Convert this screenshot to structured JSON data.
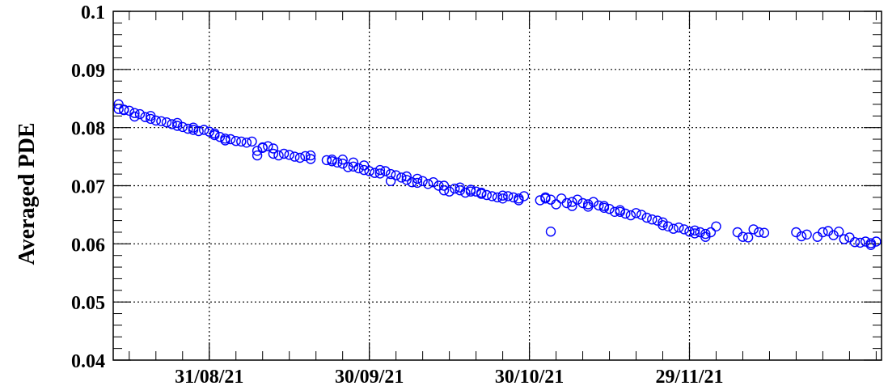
{
  "chart_data": {
    "type": "scatter",
    "title": "",
    "xlabel": "",
    "ylabel": "Averaged PDE",
    "x_axis_type": "date",
    "xlim": [
      "2021-08-13",
      "2021-12-28"
    ],
    "ylim": [
      0.04,
      0.1
    ],
    "y_ticks": [
      0.04,
      0.05,
      0.06,
      0.07,
      0.08,
      0.09,
      0.1
    ],
    "y_tick_labels": [
      "0.04",
      "0.05",
      "0.06",
      "0.07",
      "0.08",
      "0.09",
      "0.1"
    ],
    "x_ticks": [
      "2021-08-31",
      "2021-09-30",
      "2021-10-30",
      "2021-11-29"
    ],
    "x_tick_labels": [
      "31/08/21",
      "30/09/21",
      "30/10/21",
      "29/11/21"
    ],
    "grid": true,
    "legend": "none",
    "marker": "open-circle",
    "marker_color": "#0000ff",
    "series": [
      {
        "points": [
          [
            "2021-08-14",
            0.084
          ],
          [
            "2021-08-14",
            0.0832
          ],
          [
            "2021-08-15",
            0.083
          ],
          [
            "2021-08-15",
            0.0831
          ],
          [
            "2021-08-16",
            0.0829
          ],
          [
            "2021-08-17",
            0.0825
          ],
          [
            "2021-08-17",
            0.0819
          ],
          [
            "2021-08-18",
            0.0823
          ],
          [
            "2021-08-19",
            0.0818
          ],
          [
            "2021-08-20",
            0.082
          ],
          [
            "2021-08-20",
            0.0815
          ],
          [
            "2021-08-21",
            0.0812
          ],
          [
            "2021-08-22",
            0.0811
          ],
          [
            "2021-08-23",
            0.0809
          ],
          [
            "2021-08-24",
            0.0806
          ],
          [
            "2021-08-25",
            0.0808
          ],
          [
            "2021-08-25",
            0.0803
          ],
          [
            "2021-08-26",
            0.0801
          ],
          [
            "2021-08-27",
            0.0798
          ],
          [
            "2021-08-28",
            0.08
          ],
          [
            "2021-08-28",
            0.0796
          ],
          [
            "2021-08-29",
            0.0794
          ],
          [
            "2021-08-30",
            0.0796
          ],
          [
            "2021-08-31",
            0.0793
          ],
          [
            "2021-09-01",
            0.079
          ],
          [
            "2021-09-01",
            0.0787
          ],
          [
            "2021-09-02",
            0.0784
          ],
          [
            "2021-09-03",
            0.0781
          ],
          [
            "2021-09-03",
            0.0778
          ],
          [
            "2021-09-04",
            0.078
          ],
          [
            "2021-09-05",
            0.0777
          ],
          [
            "2021-09-06",
            0.0776
          ],
          [
            "2021-09-07",
            0.0774
          ],
          [
            "2021-09-08",
            0.0776
          ],
          [
            "2021-09-09",
            0.0752
          ],
          [
            "2021-09-09",
            0.076
          ],
          [
            "2021-09-10",
            0.0766
          ],
          [
            "2021-09-10",
            0.0765
          ],
          [
            "2021-09-11",
            0.0768
          ],
          [
            "2021-09-12",
            0.0764
          ],
          [
            "2021-09-12",
            0.0755
          ],
          [
            "2021-09-13",
            0.0752
          ],
          [
            "2021-09-14",
            0.0755
          ],
          [
            "2021-09-15",
            0.0753
          ],
          [
            "2021-09-16",
            0.075
          ],
          [
            "2021-09-17",
            0.0748
          ],
          [
            "2021-09-18",
            0.0751
          ],
          [
            "2021-09-19",
            0.0746
          ],
          [
            "2021-09-19",
            0.0752
          ],
          [
            "2021-09-22",
            0.0744
          ],
          [
            "2021-09-23",
            0.0742
          ],
          [
            "2021-09-23",
            0.0745
          ],
          [
            "2021-09-24",
            0.074
          ],
          [
            "2021-09-25",
            0.0745
          ],
          [
            "2021-09-25",
            0.0738
          ],
          [
            "2021-09-26",
            0.0732
          ],
          [
            "2021-09-27",
            0.074
          ],
          [
            "2021-09-27",
            0.0733
          ],
          [
            "2021-09-28",
            0.073
          ],
          [
            "2021-09-29",
            0.0735
          ],
          [
            "2021-09-29",
            0.0727
          ],
          [
            "2021-09-30",
            0.0725
          ],
          [
            "2021-10-01",
            0.0722
          ],
          [
            "2021-10-02",
            0.0727
          ],
          [
            "2021-10-02",
            0.0721
          ],
          [
            "2021-10-03",
            0.0725
          ],
          [
            "2021-10-04",
            0.0708
          ],
          [
            "2021-10-04",
            0.072
          ],
          [
            "2021-10-05",
            0.0718
          ],
          [
            "2021-10-06",
            0.0714
          ],
          [
            "2021-10-07",
            0.0716
          ],
          [
            "2021-10-07",
            0.071
          ],
          [
            "2021-10-08",
            0.0706
          ],
          [
            "2021-10-09",
            0.0712
          ],
          [
            "2021-10-09",
            0.0705
          ],
          [
            "2021-10-10",
            0.0708
          ],
          [
            "2021-10-11",
            0.0703
          ],
          [
            "2021-10-12",
            0.0706
          ],
          [
            "2021-10-13",
            0.07
          ],
          [
            "2021-10-14",
            0.07
          ],
          [
            "2021-10-14",
            0.0692
          ],
          [
            "2021-10-15",
            0.069
          ],
          [
            "2021-10-16",
            0.0695
          ],
          [
            "2021-10-17",
            0.0692
          ],
          [
            "2021-10-17",
            0.0697
          ],
          [
            "2021-10-18",
            0.0688
          ],
          [
            "2021-10-19",
            0.0693
          ],
          [
            "2021-10-19",
            0.069
          ],
          [
            "2021-10-20",
            0.069
          ],
          [
            "2021-10-21",
            0.0686
          ],
          [
            "2021-10-21",
            0.0688
          ],
          [
            "2021-10-22",
            0.0684
          ],
          [
            "2021-10-23",
            0.0682
          ],
          [
            "2021-10-24",
            0.068
          ],
          [
            "2021-10-25",
            0.0683
          ],
          [
            "2021-10-25",
            0.0678
          ],
          [
            "2021-10-26",
            0.0682
          ],
          [
            "2021-10-27",
            0.068
          ],
          [
            "2021-10-28",
            0.0675
          ],
          [
            "2021-10-28",
            0.0678
          ],
          [
            "2021-10-29",
            0.0682
          ],
          [
            "2021-11-01",
            0.0675
          ],
          [
            "2021-11-02",
            0.068
          ],
          [
            "2021-11-02",
            0.0678
          ],
          [
            "2021-11-03",
            0.0676
          ],
          [
            "2021-11-03",
            0.0621
          ],
          [
            "2021-11-04",
            0.0668
          ],
          [
            "2021-11-05",
            0.0678
          ],
          [
            "2021-11-06",
            0.067
          ],
          [
            "2021-11-07",
            0.0665
          ],
          [
            "2021-11-07",
            0.0672
          ],
          [
            "2021-11-08",
            0.0676
          ],
          [
            "2021-11-09",
            0.067
          ],
          [
            "2021-11-10",
            0.0668
          ],
          [
            "2021-11-10",
            0.0664
          ],
          [
            "2021-11-11",
            0.0672
          ],
          [
            "2021-11-12",
            0.0666
          ],
          [
            "2021-11-13",
            0.0662
          ],
          [
            "2021-11-13",
            0.0665
          ],
          [
            "2021-11-14",
            0.066
          ],
          [
            "2021-11-15",
            0.0655
          ],
          [
            "2021-11-16",
            0.0658
          ],
          [
            "2021-11-16",
            0.0655
          ],
          [
            "2021-11-17",
            0.0652
          ],
          [
            "2021-11-18",
            0.0649
          ],
          [
            "2021-11-19",
            0.0653
          ],
          [
            "2021-11-20",
            0.065
          ],
          [
            "2021-11-21",
            0.0645
          ],
          [
            "2021-11-22",
            0.0642
          ],
          [
            "2021-11-23",
            0.064
          ],
          [
            "2021-11-24",
            0.0632
          ],
          [
            "2021-11-24",
            0.0637
          ],
          [
            "2021-11-25",
            0.063
          ],
          [
            "2021-11-26",
            0.0626
          ],
          [
            "2021-11-27",
            0.0628
          ],
          [
            "2021-11-28",
            0.0625
          ],
          [
            "2021-11-29",
            0.0621
          ],
          [
            "2021-11-30",
            0.0618
          ],
          [
            "2021-11-30",
            0.0623
          ],
          [
            "2021-12-01",
            0.062
          ],
          [
            "2021-12-02",
            0.0612
          ],
          [
            "2021-12-02",
            0.0617
          ],
          [
            "2021-12-03",
            0.062
          ],
          [
            "2021-12-04",
            0.063
          ],
          [
            "2021-12-08",
            0.062
          ],
          [
            "2021-12-09",
            0.0612
          ],
          [
            "2021-12-10",
            0.0611
          ],
          [
            "2021-12-11",
            0.0625
          ],
          [
            "2021-12-12",
            0.062
          ],
          [
            "2021-12-13",
            0.0619
          ],
          [
            "2021-12-19",
            0.062
          ],
          [
            "2021-12-20",
            0.0613
          ],
          [
            "2021-12-21",
            0.0616
          ],
          [
            "2021-12-23",
            0.0612
          ],
          [
            "2021-12-24",
            0.062
          ],
          [
            "2021-12-25",
            0.0622
          ],
          [
            "2021-12-26",
            0.0615
          ],
          [
            "2021-12-27",
            0.0621
          ],
          [
            "2021-12-28",
            0.0608
          ],
          [
            "2021-12-29",
            0.0611
          ],
          [
            "2021-12-30",
            0.0603
          ],
          [
            "2021-12-31",
            0.0602
          ],
          [
            "2022-01-01",
            0.0604
          ],
          [
            "2022-01-02",
            0.0598
          ],
          [
            "2022-01-02",
            0.0601
          ],
          [
            "2022-01-03",
            0.0604
          ]
        ]
      }
    ]
  }
}
